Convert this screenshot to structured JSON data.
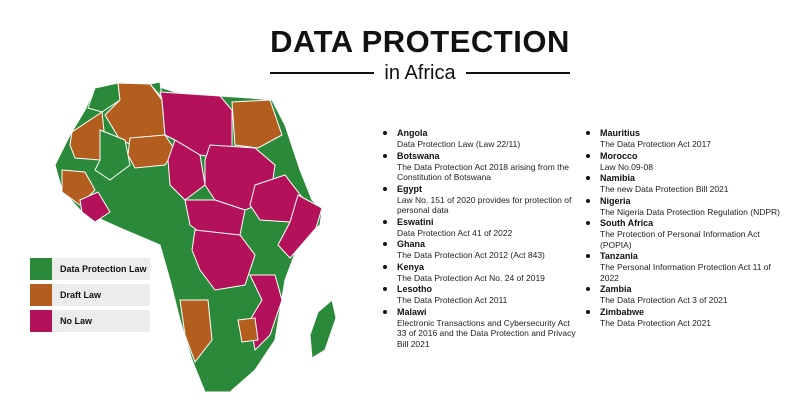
{
  "header": {
    "title": "DATA PROTECTION",
    "subtitle": "in Africa"
  },
  "colors": {
    "law": "#2b8a3a",
    "draft": "#b35d1e",
    "none": "#b3115a"
  },
  "legend": [
    {
      "label": "Data Protection Law",
      "color": "#2b8a3a"
    },
    {
      "label": "Draft Law",
      "color": "#b35d1e"
    },
    {
      "label": "No Law",
      "color": "#b3115a"
    }
  ],
  "countries_left": [
    {
      "name": "Angola",
      "law": "Data Protection Law (Law 22/11)"
    },
    {
      "name": "Botswana",
      "law": "The Data Protection Act 2018 arising from the Constitution of Botswana"
    },
    {
      "name": "Egypt",
      "law": "Law No. 151 of 2020 provides for protection of personal data"
    },
    {
      "name": "Eswatini",
      "law": "Data Protection Act 41 of 2022"
    },
    {
      "name": "Ghana",
      "law": "The Data Protection Act 2012 (Act 843)"
    },
    {
      "name": "Kenya",
      "law": "The Data Protection Act No. 24 of 2019"
    },
    {
      "name": "Lesotho",
      "law": "The Data Protection Act 2011"
    },
    {
      "name": "Malawi",
      "law": "Electronic Transactions and Cybersecurity Act 33 of 2016 and the Data Protection and Privacy Bill 2021"
    }
  ],
  "countries_right": [
    {
      "name": "Mauritius",
      "law": "The Data Protection Act 2017"
    },
    {
      "name": "Morocco",
      "law": "Law No.09-08"
    },
    {
      "name": "Namibia",
      "law": "The new Data Protection Bill 2021"
    },
    {
      "name": "Nigeria",
      "law": "The Nigeria Data Protection Regulation (NDPR)"
    },
    {
      "name": "South Africa",
      "law": "The Protection of Personal Information Act (POPIA)"
    },
    {
      "name": "Tanzania",
      "law": "The Personal Information Protection Act 11 of 2022"
    },
    {
      "name": "Zambia",
      "law": "The Data Protection Act 3 of 2021"
    },
    {
      "name": "Zimbabwe",
      "law": "The Data Protection Act 2021"
    }
  ]
}
